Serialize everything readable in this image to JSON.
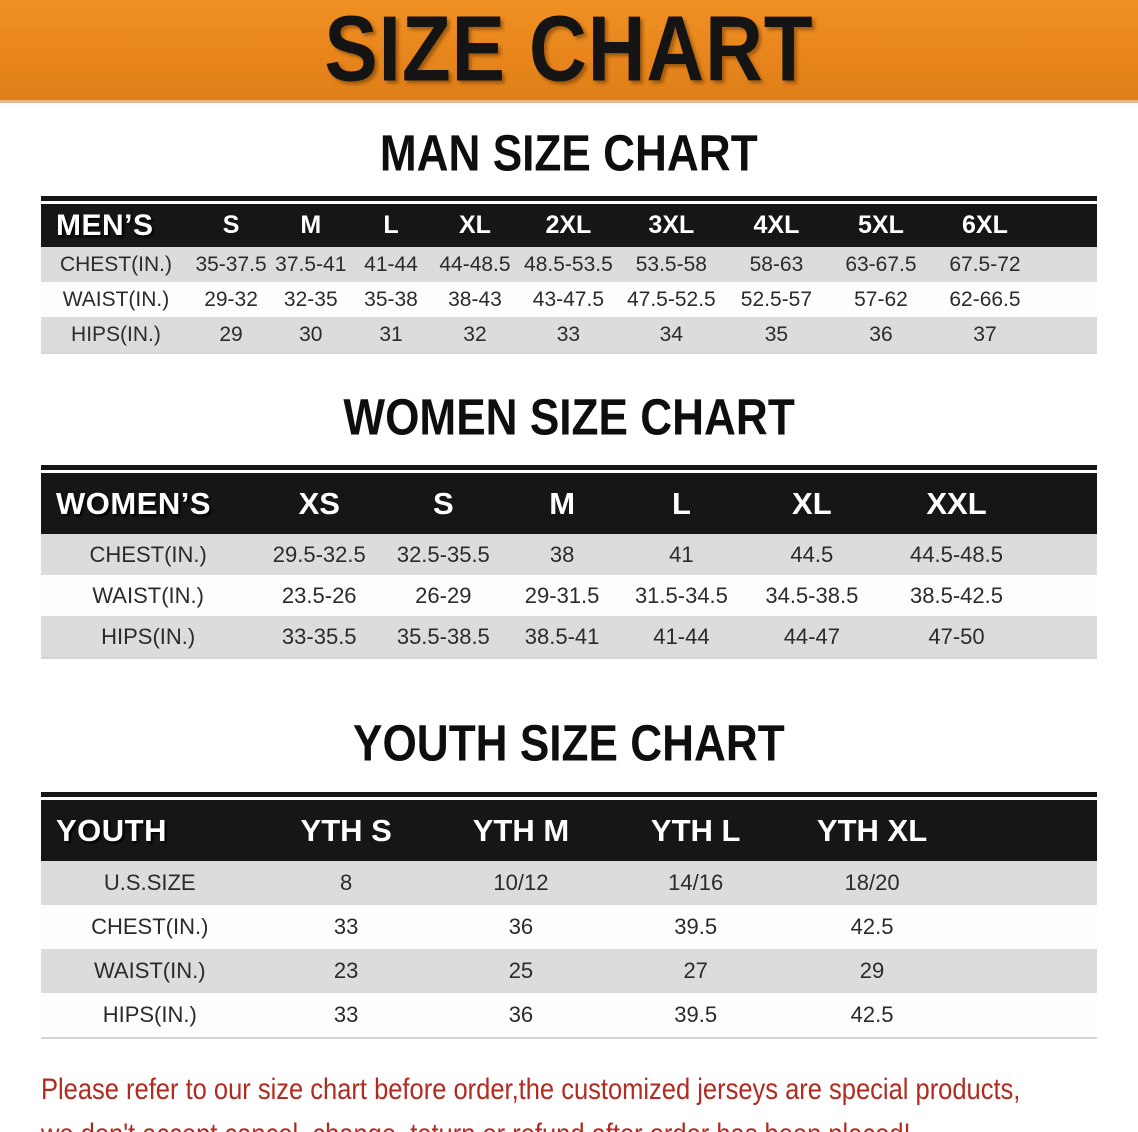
{
  "banner": {
    "title": "SIZE CHART",
    "background_color": "#e8861c",
    "text_color": "#141414"
  },
  "sections": [
    {
      "id": "men",
      "heading": "MAN SIZE CHART",
      "table": {
        "corner_label": "MEN’S",
        "columns": [
          "S",
          "M",
          "L",
          "XL",
          "2XL",
          "3XL",
          "4XL",
          "5XL",
          "6XL"
        ],
        "rows": [
          {
            "label": "CHEST(IN.)",
            "values": [
              "35-37.5",
              "37.5-41",
              "41-44",
              "44-48.5",
              "48.5-53.5",
              "53.5-58",
              "58-63",
              "63-67.5",
              "67.5-72"
            ]
          },
          {
            "label": "WAIST(IN.)",
            "values": [
              "29-32",
              "32-35",
              "35-38",
              "38-43",
              "43-47.5",
              "47.5-52.5",
              "52.5-57",
              "57-62",
              "62-66.5"
            ]
          },
          {
            "label": "HIPS(IN.)",
            "values": [
              "29",
              "30",
              "31",
              "32",
              "33",
              "34",
              "35",
              "36",
              "37"
            ]
          }
        ]
      }
    },
    {
      "id": "women",
      "heading": "WOMEN SIZE CHART",
      "table": {
        "corner_label": "WOMEN’S",
        "columns": [
          "XS",
          "S",
          "M",
          "L",
          "XL",
          "XXL"
        ],
        "rows": [
          {
            "label": "CHEST(IN.)",
            "values": [
              "29.5-32.5",
              "32.5-35.5",
              "38",
              "41",
              "44.5",
              "44.5-48.5"
            ]
          },
          {
            "label": "WAIST(IN.)",
            "values": [
              "23.5-26",
              "26-29",
              "29-31.5",
              "31.5-34.5",
              "34.5-38.5",
              "38.5-42.5"
            ]
          },
          {
            "label": "HIPS(IN.)",
            "values": [
              "33-35.5",
              "35.5-38.5",
              "38.5-41",
              "41-44",
              "44-47",
              "47-50"
            ]
          }
        ]
      }
    },
    {
      "id": "youth",
      "heading": "YOUTH SIZE CHART",
      "table": {
        "corner_label": "YOUTH",
        "columns": [
          "YTH S",
          "YTH M",
          "YTH L",
          "YTH XL"
        ],
        "rows": [
          {
            "label": "U.S.SIZE",
            "values": [
              "8",
              "10/12",
              "14/16",
              "18/20"
            ]
          },
          {
            "label": "CHEST(IN.)",
            "values": [
              "33",
              "36",
              "39.5",
              "42.5"
            ]
          },
          {
            "label": "WAIST(IN.)",
            "values": [
              "23",
              "25",
              "27",
              "29"
            ]
          },
          {
            "label": "HIPS(IN.)",
            "values": [
              "33",
              "36",
              "39.5",
              "42.5"
            ]
          }
        ]
      }
    }
  ],
  "notice": {
    "line1": "Please refer to our size chart before order,the customized jerseys are special products,",
    "line2": "we don't accept cancel, change, teturn or refund after order has been placed!",
    "text_color": "#b22a20"
  },
  "appearance": {
    "header_bar_color": "#161616",
    "stripe_row_color": "#dcdcdc",
    "plain_row_color": "#fdfdfd"
  }
}
